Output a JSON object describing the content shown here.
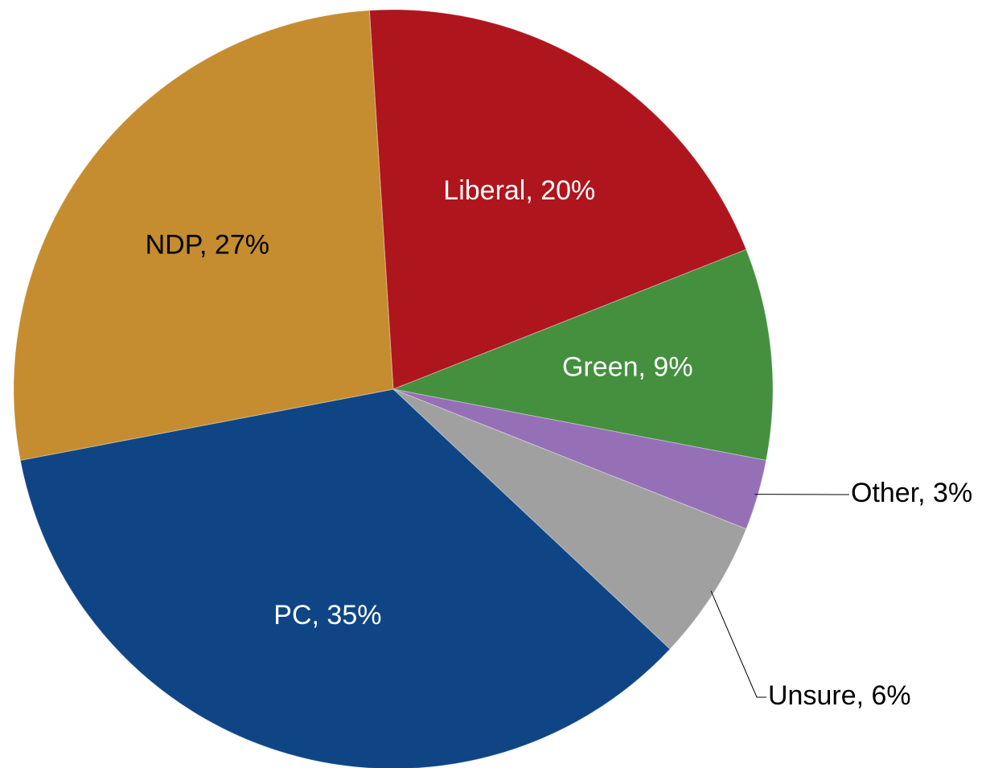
{
  "chart_data": {
    "type": "pie",
    "title": "",
    "slices": [
      {
        "label": "Liberal",
        "value": 20,
        "data_label": "Liberal, 20%",
        "color": "#af151d",
        "label_color": "#ffffff"
      },
      {
        "label": "Green",
        "value": 9,
        "data_label": "Green, 9%",
        "color": "#44903f",
        "label_color": "#ffffff"
      },
      {
        "label": "Other",
        "value": 3,
        "data_label": "Other, 3%",
        "color": "#9670b6",
        "label_color": "#000000"
      },
      {
        "label": "Unsure",
        "value": 6,
        "data_label": "Unsure, 6%",
        "color": "#a0a0a0",
        "label_color": "#000000"
      },
      {
        "label": "PC",
        "value": 35,
        "data_label": "PC, 35%",
        "color": "#0f4584",
        "label_color": "#ffffff"
      },
      {
        "label": "NDP",
        "value": 27,
        "data_label": "NDP, 27%",
        "color": "#c58d30",
        "label_color": "#000000"
      }
    ],
    "legend": "none"
  }
}
